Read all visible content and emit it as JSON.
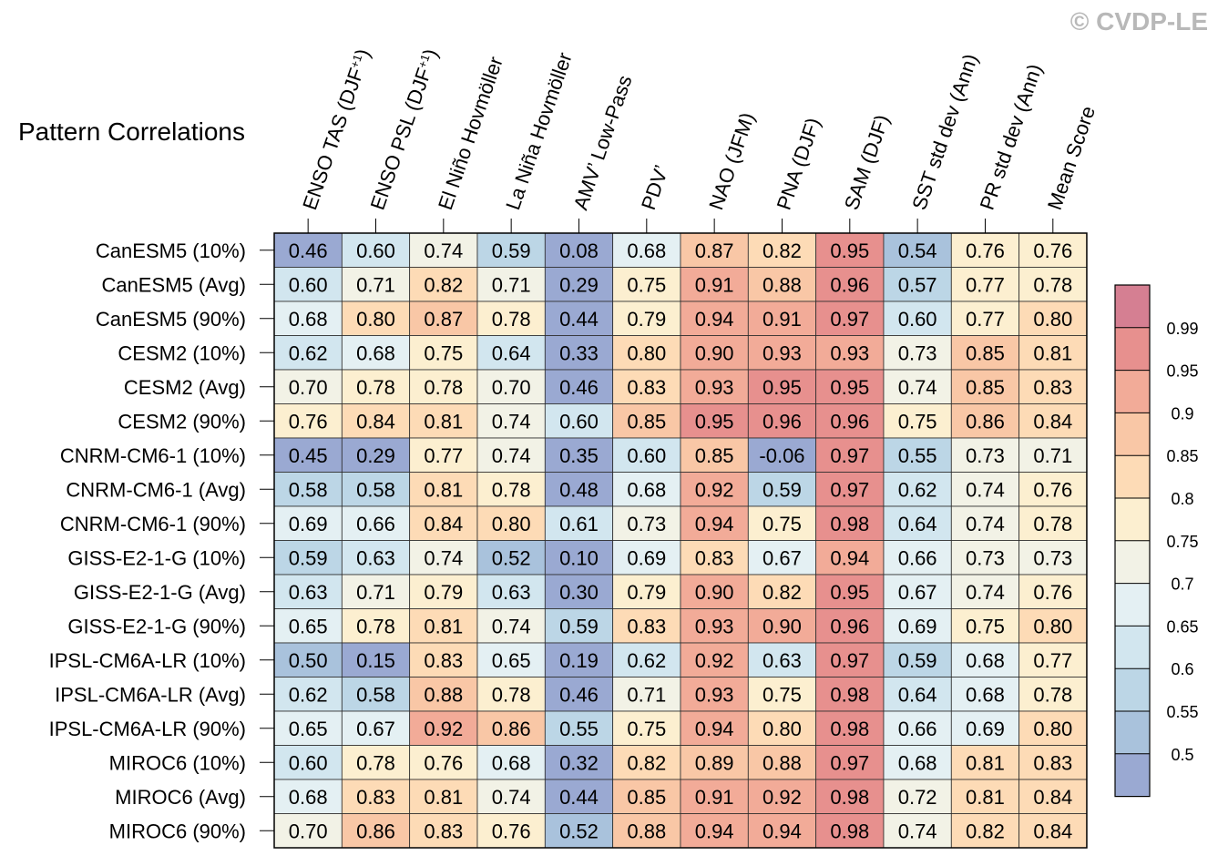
{
  "watermark": "© CVDP-LE",
  "chart_data": {
    "type": "heatmap",
    "title": "Pattern Correlations",
    "columns": [
      {
        "text": "ENSO TAS (DJF",
        "sup": "+1",
        "close": ")"
      },
      {
        "text": "ENSO PSL (DJF",
        "sup": "+1",
        "close": ")"
      },
      {
        "text": "El Niño Hovmöller",
        "sup": "",
        "close": ""
      },
      {
        "text": "La Niña Hovmöller",
        "sup": "",
        "close": ""
      },
      {
        "text": "AMV’ Low-Pass",
        "sup": "",
        "close": ""
      },
      {
        "text": "PDV’",
        "sup": "",
        "close": ""
      },
      {
        "text": "NAO (JFM)",
        "sup": "",
        "close": ""
      },
      {
        "text": "PNA (DJF)",
        "sup": "",
        "close": ""
      },
      {
        "text": "SAM (DJF)",
        "sup": "",
        "close": ""
      },
      {
        "text": "SST std dev (Ann)",
        "sup": "",
        "close": ""
      },
      {
        "text": "PR std dev (Ann)",
        "sup": "",
        "close": ""
      },
      {
        "text": "Mean Score",
        "sup": "",
        "close": ""
      }
    ],
    "rows": [
      "CanESM5 (10%)",
      "CanESM5 (Avg)",
      "CanESM5 (90%)",
      "CESM2 (10%)",
      "CESM2 (Avg)",
      "CESM2 (90%)",
      "CNRM-CM6-1 (10%)",
      "CNRM-CM6-1 (Avg)",
      "CNRM-CM6-1 (90%)",
      "GISS-E2-1-G (10%)",
      "GISS-E2-1-G (Avg)",
      "GISS-E2-1-G (90%)",
      "IPSL-CM6A-LR (10%)",
      "IPSL-CM6A-LR (Avg)",
      "IPSL-CM6A-LR (90%)",
      "MIROC6 (10%)",
      "MIROC6 (Avg)",
      "MIROC6 (90%)"
    ],
    "values": [
      [
        "0.46",
        "0.60",
        "0.74",
        "0.59",
        "0.08",
        "0.68",
        "0.87",
        "0.82",
        "0.95",
        "0.54",
        "0.76",
        "0.76"
      ],
      [
        "0.60",
        "0.71",
        "0.82",
        "0.71",
        "0.29",
        "0.75",
        "0.91",
        "0.88",
        "0.96",
        "0.57",
        "0.77",
        "0.78"
      ],
      [
        "0.68",
        "0.80",
        "0.87",
        "0.78",
        "0.44",
        "0.79",
        "0.94",
        "0.91",
        "0.97",
        "0.60",
        "0.77",
        "0.80"
      ],
      [
        "0.62",
        "0.68",
        "0.75",
        "0.64",
        "0.33",
        "0.80",
        "0.90",
        "0.93",
        "0.93",
        "0.73",
        "0.85",
        "0.81"
      ],
      [
        "0.70",
        "0.78",
        "0.78",
        "0.70",
        "0.46",
        "0.83",
        "0.93",
        "0.95",
        "0.95",
        "0.74",
        "0.85",
        "0.83"
      ],
      [
        "0.76",
        "0.84",
        "0.81",
        "0.74",
        "0.60",
        "0.85",
        "0.95",
        "0.96",
        "0.96",
        "0.75",
        "0.86",
        "0.84"
      ],
      [
        "0.45",
        "0.29",
        "0.77",
        "0.74",
        "0.35",
        "0.60",
        "0.85",
        "-0.06",
        "0.97",
        "0.55",
        "0.73",
        "0.71"
      ],
      [
        "0.58",
        "0.58",
        "0.81",
        "0.78",
        "0.48",
        "0.68",
        "0.92",
        "0.59",
        "0.97",
        "0.62",
        "0.74",
        "0.76"
      ],
      [
        "0.69",
        "0.66",
        "0.84",
        "0.80",
        "0.61",
        "0.73",
        "0.94",
        "0.75",
        "0.98",
        "0.64",
        "0.74",
        "0.78"
      ],
      [
        "0.59",
        "0.63",
        "0.74",
        "0.52",
        "0.10",
        "0.69",
        "0.83",
        "0.67",
        "0.94",
        "0.66",
        "0.73",
        "0.73"
      ],
      [
        "0.63",
        "0.71",
        "0.79",
        "0.63",
        "0.30",
        "0.79",
        "0.90",
        "0.82",
        "0.95",
        "0.67",
        "0.74",
        "0.76"
      ],
      [
        "0.65",
        "0.78",
        "0.81",
        "0.74",
        "0.59",
        "0.83",
        "0.93",
        "0.90",
        "0.96",
        "0.69",
        "0.75",
        "0.80"
      ],
      [
        "0.50",
        "0.15",
        "0.83",
        "0.65",
        "0.19",
        "0.62",
        "0.92",
        "0.63",
        "0.97",
        "0.59",
        "0.68",
        "0.77"
      ],
      [
        "0.62",
        "0.58",
        "0.88",
        "0.78",
        "0.46",
        "0.71",
        "0.93",
        "0.75",
        "0.98",
        "0.64",
        "0.68",
        "0.78"
      ],
      [
        "0.65",
        "0.67",
        "0.92",
        "0.86",
        "0.55",
        "0.75",
        "0.94",
        "0.80",
        "0.98",
        "0.66",
        "0.69",
        "0.80"
      ],
      [
        "0.60",
        "0.78",
        "0.76",
        "0.68",
        "0.32",
        "0.82",
        "0.89",
        "0.88",
        "0.97",
        "0.68",
        "0.81",
        "0.83"
      ],
      [
        "0.68",
        "0.83",
        "0.81",
        "0.74",
        "0.44",
        "0.85",
        "0.91",
        "0.92",
        "0.98",
        "0.72",
        "0.81",
        "0.84"
      ],
      [
        "0.70",
        "0.86",
        "0.83",
        "0.76",
        "0.52",
        "0.88",
        "0.94",
        "0.94",
        "0.98",
        "0.74",
        "0.82",
        "0.84"
      ]
    ],
    "colorbar": {
      "levels": [
        "0.5",
        "0.55",
        "0.6",
        "0.65",
        "0.7",
        "0.75",
        "0.8",
        "0.85",
        "0.9",
        "0.95",
        "0.99"
      ],
      "colors": [
        "#9aa9d2",
        "#a9c2dc",
        "#bcd6e6",
        "#d2e6ef",
        "#e4f0f3",
        "#f2f2e6",
        "#fcefd0",
        "#fddbb6",
        "#f9c7a6",
        "#f2ab98",
        "#e7908e",
        "#d57f92"
      ]
    }
  }
}
